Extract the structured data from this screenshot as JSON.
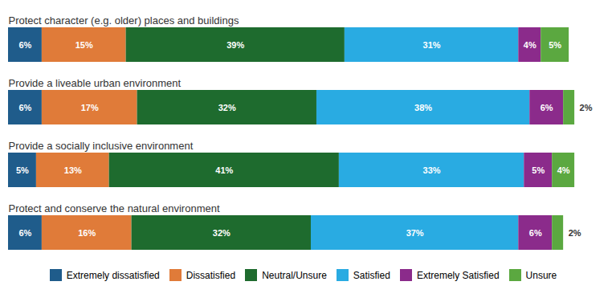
{
  "chart_data": {
    "type": "bar",
    "orientation": "horizontal",
    "stacked": true,
    "categories": [
      "Protect character (e.g. older) places and buildings",
      "Provide a liveable urban environment",
      "Provide a socially inclusive environment",
      "Protect and conserve the natural environment"
    ],
    "series": [
      {
        "name": "Extremely dissatisfied",
        "color": "#1F5C8B",
        "values": [
          6,
          6,
          5,
          6
        ],
        "value_labels": [
          "6%",
          "6%",
          "5%",
          "6%"
        ]
      },
      {
        "name": "Dissatisfied",
        "color": "#E07B39",
        "values": [
          15,
          17,
          13,
          16
        ],
        "value_labels": [
          "15%",
          "17%",
          "13%",
          "16%"
        ]
      },
      {
        "name": "Neutral/Unsure",
        "color": "#1E6B2E",
        "values": [
          39,
          32,
          41,
          32
        ],
        "value_labels": [
          "39%",
          "32%",
          "41%",
          "32%"
        ]
      },
      {
        "name": "Satisfied",
        "color": "#29ABE2",
        "values": [
          31,
          38,
          33,
          37
        ],
        "value_labels": [
          "31%",
          "38%",
          "33%",
          "37%"
        ]
      },
      {
        "name": "Extremely Satisfied",
        "color": "#8B2B8B",
        "values": [
          4,
          6,
          5,
          6
        ],
        "value_labels": [
          "4%",
          "6%",
          "5%",
          "6%"
        ]
      },
      {
        "name": "Unsure",
        "color": "#5BA840",
        "values": [
          5,
          2,
          4,
          2
        ],
        "value_labels": [
          "5%",
          "2%",
          "4%",
          "2%"
        ]
      }
    ],
    "xlim": [
      0,
      107
    ],
    "data_labels": true,
    "tick_labels": false,
    "grid": false,
    "legend": "bottom"
  }
}
